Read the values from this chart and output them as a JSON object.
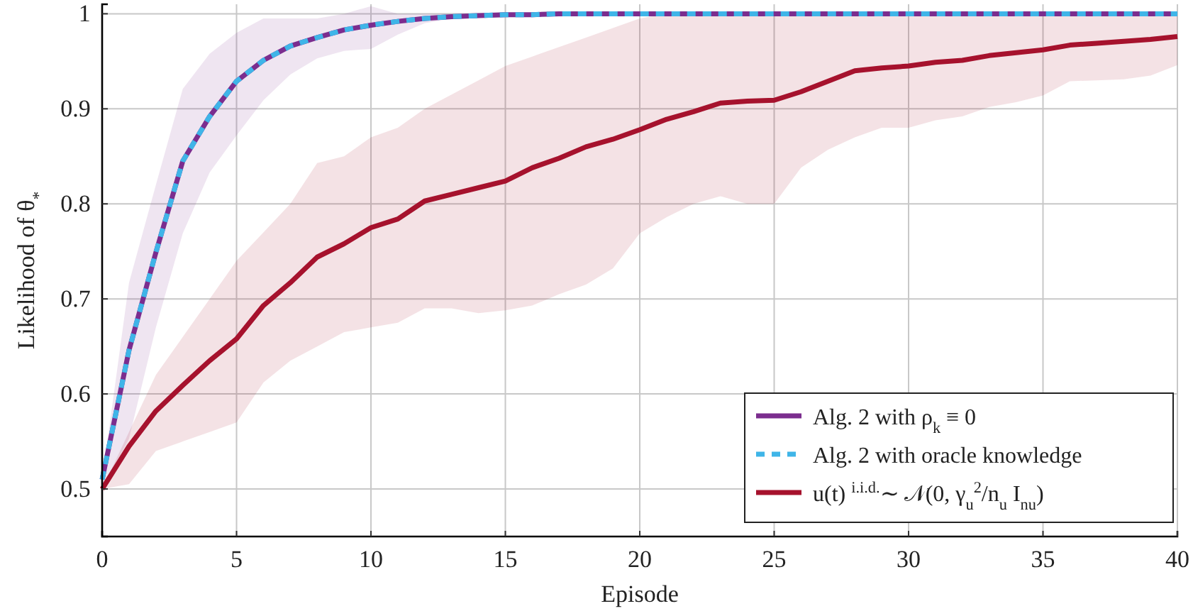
{
  "chart_data": {
    "type": "line",
    "xlabel": "Episode",
    "ylabel": "Likelihood of θ$_{*}$",
    "x": [
      0,
      1,
      2,
      3,
      4,
      5,
      6,
      7,
      8,
      9,
      10,
      11,
      12,
      13,
      14,
      15,
      16,
      17,
      18,
      19,
      20,
      21,
      22,
      23,
      24,
      25,
      26,
      27,
      28,
      29,
      30,
      31,
      32,
      33,
      34,
      35,
      36,
      37,
      38,
      39,
      40
    ],
    "xlim": [
      0,
      40
    ],
    "xticks": [
      0,
      5,
      10,
      15,
      20,
      25,
      30,
      35,
      40
    ],
    "ylim": [
      0.45,
      1.01
    ],
    "yticks": [
      0.5,
      0.6,
      0.7,
      0.8,
      0.9,
      1
    ],
    "grid": true,
    "legend": "bottom right",
    "marker": "none",
    "series": [
      {
        "name": "Alg. 2 with ρ$_{k}$ ≡ 0",
        "color": "#7b2d8e",
        "line_style": "solid",
        "values": [
          0.51,
          0.646,
          0.749,
          0.845,
          0.892,
          0.929,
          0.951,
          0.966,
          0.975,
          0.983,
          0.988,
          0.992,
          0.995,
          0.997,
          0.998,
          0.999,
          0.999,
          1,
          1,
          1,
          1,
          1,
          1,
          1,
          1,
          1,
          1,
          1,
          1,
          1,
          1,
          1,
          1,
          1,
          1,
          1,
          1,
          1,
          1,
          1,
          1
        ],
        "lower": [
          0.5,
          0.553,
          0.67,
          0.769,
          0.833,
          0.872,
          0.909,
          0.936,
          0.953,
          0.961,
          0.963,
          0.978,
          0.99,
          0.995,
          0.997,
          0.998,
          0.999,
          1,
          1,
          1,
          1,
          1,
          1,
          1,
          1,
          1,
          1,
          1,
          1,
          1,
          1,
          1,
          1,
          1,
          1,
          1,
          1,
          1,
          1,
          1,
          1
        ],
        "upper": [
          0.51,
          0.717,
          0.82,
          0.921,
          0.958,
          0.98,
          0.995,
          0.995,
          0.995,
          1,
          1.008,
          1,
          1,
          1,
          1,
          1,
          1,
          1,
          1,
          1,
          1,
          1,
          1,
          1,
          1,
          1,
          1,
          1,
          1,
          1,
          1,
          1,
          1,
          1,
          1,
          1,
          1,
          1,
          1,
          1,
          1
        ]
      },
      {
        "name": "Alg. 2 with oracle knowledge",
        "color": "#3fb5e8",
        "line_style": "dashed",
        "values": [
          0.51,
          0.646,
          0.749,
          0.845,
          0.892,
          0.929,
          0.951,
          0.966,
          0.975,
          0.983,
          0.988,
          0.992,
          0.995,
          0.997,
          0.998,
          0.999,
          0.999,
          1,
          1,
          1,
          1,
          1,
          1,
          1,
          1,
          1,
          1,
          1,
          1,
          1,
          1,
          1,
          1,
          1,
          1,
          1,
          1,
          1,
          1,
          1,
          1
        ]
      },
      {
        "name": "u(t) $^{i.i.d.}$∼ 𝒩(0, γ$_{u}$$^{2}$/n$_{u}$ I$_{nu}$)",
        "color": "#a6122d",
        "line_style": "solid",
        "values": [
          0.5,
          0.545,
          0.582,
          0.609,
          0.635,
          0.658,
          0.693,
          0.717,
          0.744,
          0.758,
          0.775,
          0.784,
          0.803,
          0.81,
          0.817,
          0.824,
          0.838,
          0.848,
          0.86,
          0.868,
          0.878,
          0.889,
          0.897,
          0.906,
          0.908,
          0.909,
          0.918,
          0.929,
          0.94,
          0.943,
          0.945,
          0.949,
          0.951,
          0.956,
          0.959,
          0.962,
          0.967,
          0.969,
          0.971,
          0.973,
          0.976
        ],
        "lower": [
          0.5,
          0.505,
          0.54,
          0.55,
          0.56,
          0.57,
          0.612,
          0.635,
          0.65,
          0.665,
          0.67,
          0.675,
          0.69,
          0.69,
          0.685,
          0.688,
          0.693,
          0.705,
          0.715,
          0.732,
          0.769,
          0.786,
          0.8,
          0.808,
          0.8,
          0.8,
          0.838,
          0.857,
          0.87,
          0.88,
          0.88,
          0.888,
          0.892,
          0.902,
          0.907,
          0.914,
          0.929,
          0.93,
          0.931,
          0.935,
          0.946
        ],
        "upper": [
          0.5,
          0.56,
          0.62,
          0.66,
          0.7,
          0.74,
          0.77,
          0.8,
          0.843,
          0.85,
          0.87,
          0.88,
          0.9,
          0.915,
          0.93,
          0.945,
          0.955,
          0.965,
          0.975,
          0.985,
          0.995,
          1,
          1,
          1,
          1,
          1,
          1,
          1,
          1,
          1,
          1,
          1,
          1,
          1,
          1,
          1,
          1,
          1,
          1,
          1,
          0.998
        ]
      }
    ]
  }
}
